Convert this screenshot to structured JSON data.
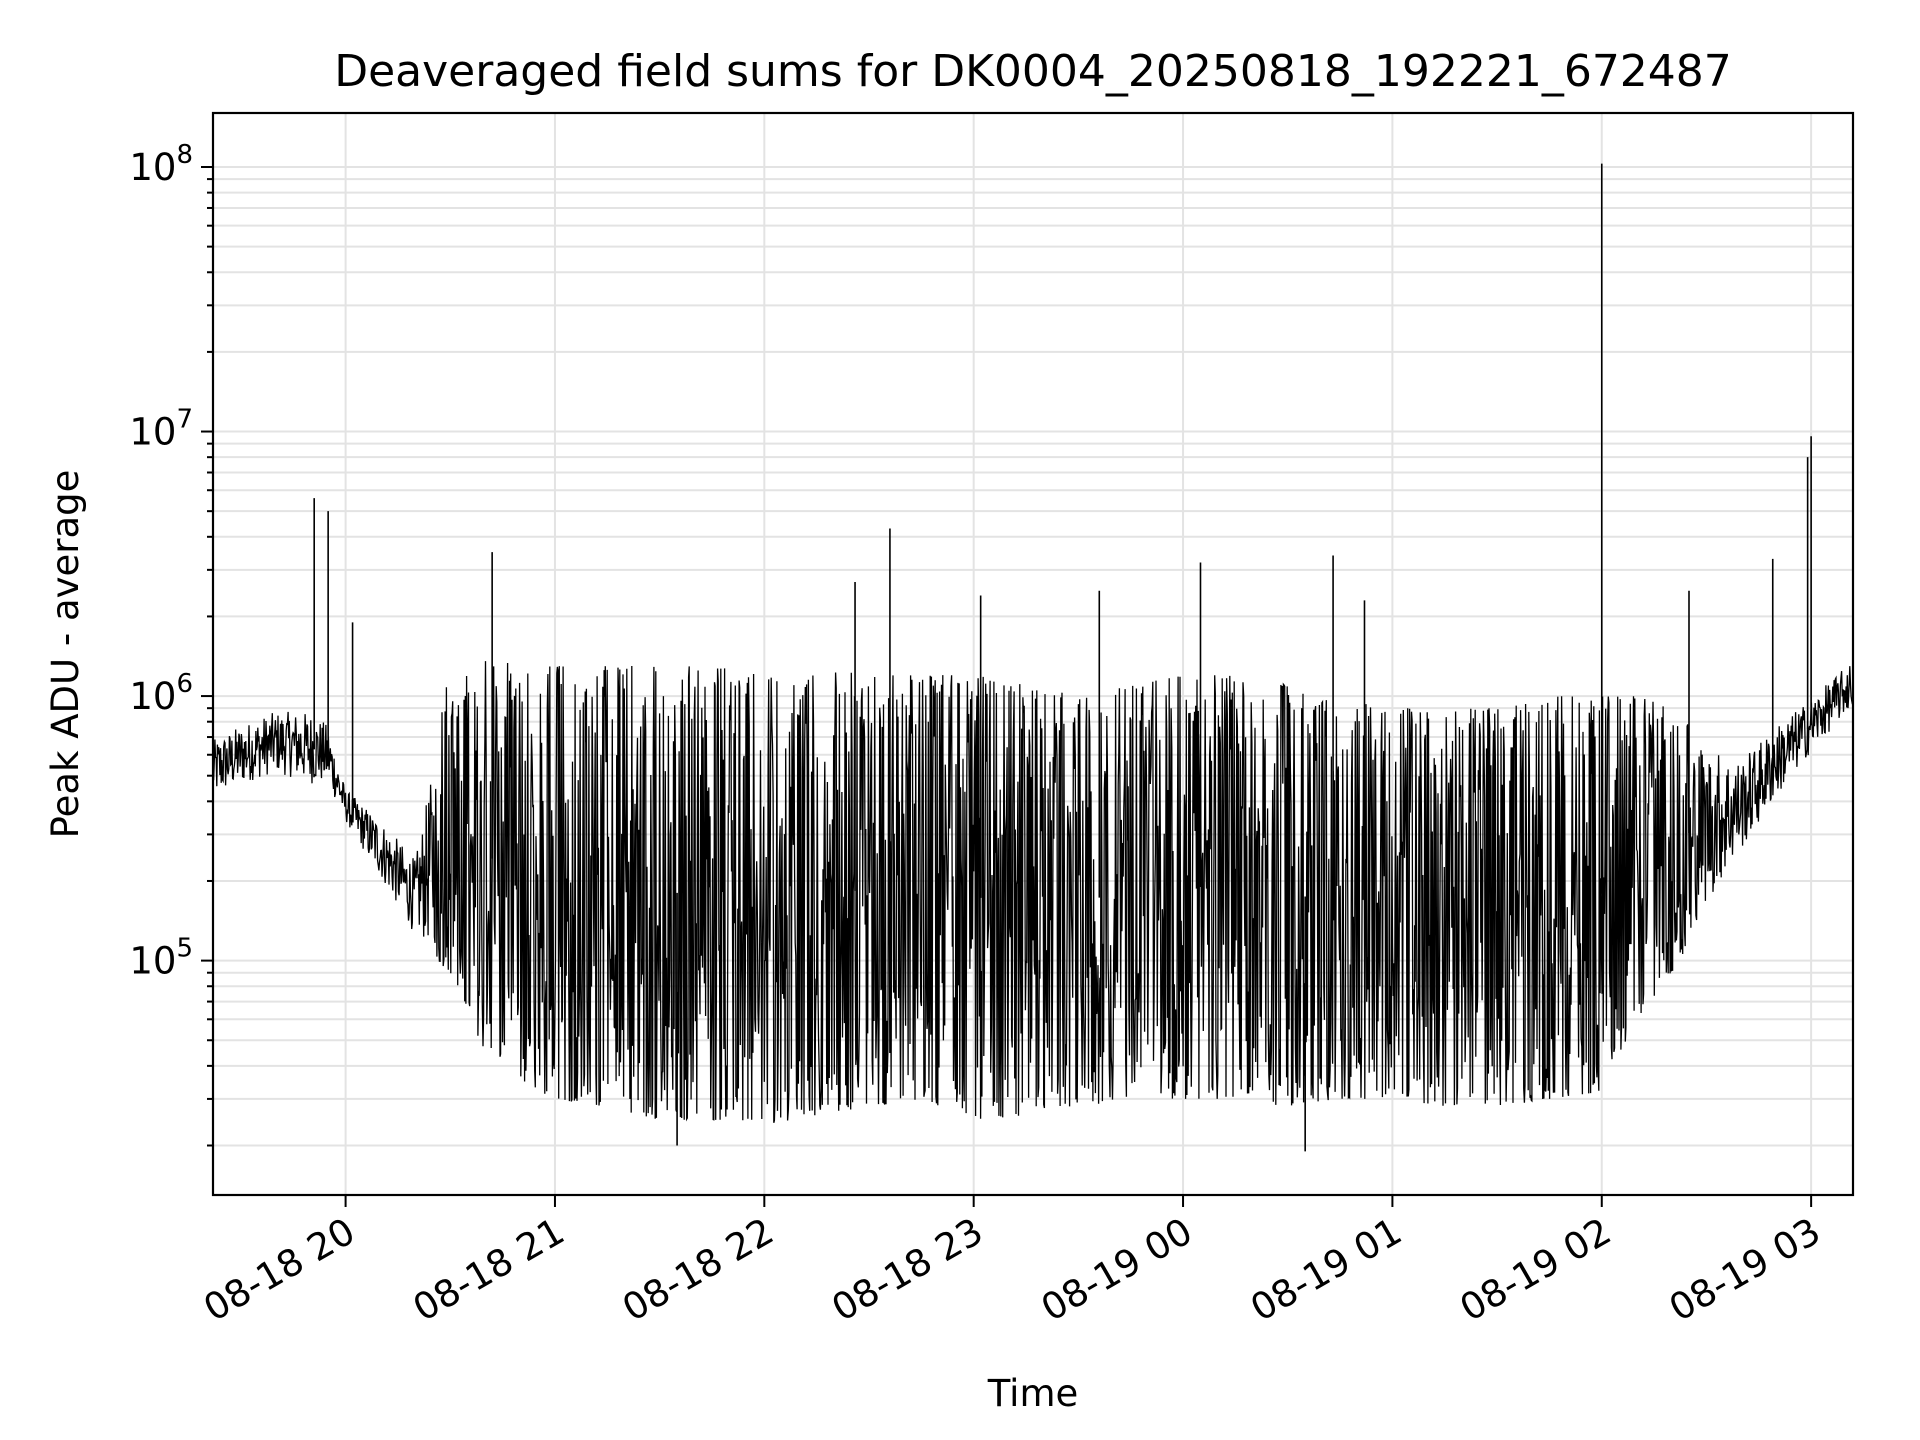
{
  "chart_data": {
    "type": "line",
    "title": "Deaveraged field sums for DK0004_20250818_192221_672487",
    "xlabel": "Time",
    "ylabel": "Peak ADU - average",
    "yscale": "log",
    "ylim": [
      13000,
      160000000
    ],
    "xlim": [
      "2025-08-18 19:22",
      "2025-08-19 03:12"
    ],
    "x_ticks": [
      "08-18 20",
      "08-18 21",
      "08-18 22",
      "08-18 23",
      "08-19 00",
      "08-19 01",
      "08-19 02",
      "08-19 03"
    ],
    "y_ticks": [
      {
        "value": 100000,
        "base": "10",
        "exp": "5"
      },
      {
        "value": 1000000,
        "base": "10",
        "exp": "6"
      },
      {
        "value": 10000000,
        "base": "10",
        "exp": "7"
      },
      {
        "value": 100000000,
        "base": "10",
        "exp": "8"
      }
    ],
    "grid": true,
    "line_color": "#000000",
    "series": [
      {
        "x": [
          "2025-08-18 19:22",
          "2025-08-18 19:30",
          "2025-08-18 19:40",
          "2025-08-18 19:50",
          "2025-08-18 19:55",
          "2025-08-18 20:00",
          "2025-08-18 20:10",
          "2025-08-18 20:20",
          "2025-08-18 20:30",
          "2025-08-18 20:40",
          "2025-08-18 20:50",
          "2025-08-18 21:00",
          "2025-08-18 21:15",
          "2025-08-18 21:30",
          "2025-08-18 21:45",
          "2025-08-18 22:00",
          "2025-08-18 22:15",
          "2025-08-18 22:30",
          "2025-08-18 22:45",
          "2025-08-18 23:00",
          "2025-08-18 23:15",
          "2025-08-18 23:30",
          "2025-08-18 23:45",
          "2025-08-19 00:00",
          "2025-08-19 00:15",
          "2025-08-19 00:30",
          "2025-08-19 00:45",
          "2025-08-19 01:00",
          "2025-08-19 01:15",
          "2025-08-19 01:30",
          "2025-08-19 01:45",
          "2025-08-19 02:00",
          "2025-08-19 02:10",
          "2025-08-19 02:20",
          "2025-08-19 02:30",
          "2025-08-19 02:40",
          "2025-08-19 02:50",
          "2025-08-19 03:00",
          "2025-08-19 03:12"
        ],
        "low": [
          400000,
          450000,
          500000,
          450000,
          450000,
          330000,
          200000,
          120000,
          90000,
          45000,
          35000,
          30000,
          28000,
          25000,
          25000,
          24000,
          26000,
          28000,
          30000,
          25000,
          26000,
          28000,
          30000,
          30000,
          30000,
          28000,
          30000,
          30000,
          28000,
          28000,
          30000,
          32000,
          60000,
          90000,
          150000,
          250000,
          400000,
          600000,
          900000
        ],
        "high": [
          700000,
          800000,
          900000,
          900000,
          800000,
          450000,
          350000,
          250000,
          1300000,
          1400000,
          1300000,
          1300000,
          1300000,
          1300000,
          1300000,
          1200000,
          1300000,
          1200000,
          1200000,
          1200000,
          1100000,
          1000000,
          1100000,
          1200000,
          1200000,
          1100000,
          1000000,
          900000,
          900000,
          900000,
          1000000,
          1000000,
          1000000,
          900000,
          700000,
          600000,
          800000,
          1000000,
          1400000
        ]
      }
    ],
    "spikes": [
      {
        "x": "2025-08-18 19:51",
        "y": 5600000
      },
      {
        "x": "2025-08-18 19:55",
        "y": 5000000
      },
      {
        "x": "2025-08-18 20:02",
        "y": 1900000
      },
      {
        "x": "2025-08-18 20:42",
        "y": 3500000
      },
      {
        "x": "2025-08-18 22:36",
        "y": 4300000
      },
      {
        "x": "2025-08-18 22:26",
        "y": 2700000
      },
      {
        "x": "2025-08-18 23:02",
        "y": 2400000
      },
      {
        "x": "2025-08-18 23:36",
        "y": 2500000
      },
      {
        "x": "2025-08-19 00:05",
        "y": 3200000
      },
      {
        "x": "2025-08-19 00:43",
        "y": 3400000
      },
      {
        "x": "2025-08-19 00:52",
        "y": 2300000
      },
      {
        "x": "2025-08-19 02:00",
        "y": 103000000
      },
      {
        "x": "2025-08-19 02:25",
        "y": 2500000
      },
      {
        "x": "2025-08-19 02:49",
        "y": 3300000
      },
      {
        "x": "2025-08-19 02:59",
        "y": 8000000
      },
      {
        "x": "2025-08-19 03:00",
        "y": 9600000
      },
      {
        "x": "2025-08-19 00:35",
        "y": 19000
      },
      {
        "x": "2025-08-18 21:35",
        "y": 20000
      }
    ]
  }
}
